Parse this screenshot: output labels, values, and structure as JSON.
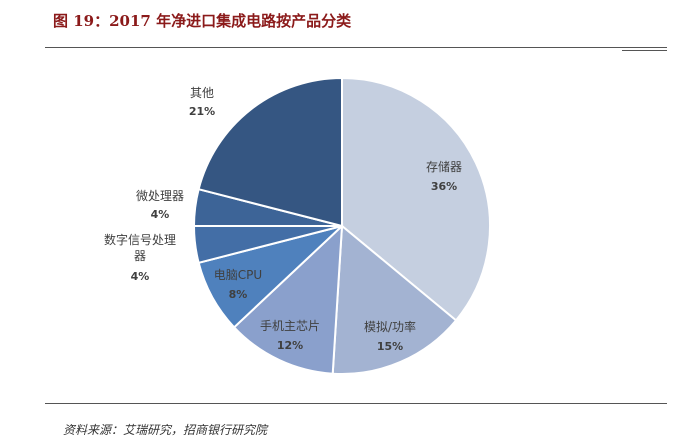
{
  "header": {
    "title": "图 19：2017 年净进口集成电路按产品分类"
  },
  "footer": {
    "source": "资料来源：艾瑞研究，招商银行研究院"
  },
  "chart_data": {
    "type": "pie",
    "title": "图 19：2017 年净进口集成电路按产品分类",
    "slices": [
      {
        "name": "存储器",
        "value": 36,
        "label": "36%",
        "color": "#c5cfe0"
      },
      {
        "name": "模拟/功率",
        "value": 15,
        "label": "15%",
        "color": "#a3b3d2"
      },
      {
        "name": "手机主芯片",
        "value": 12,
        "label": "12%",
        "color": "#8aa0cc"
      },
      {
        "name": "电脑CPU",
        "value": 8,
        "label": "8%",
        "color": "#4f81bd"
      },
      {
        "name": "数字信号处理器",
        "value": 4,
        "label": "4%",
        "color": "#436ea6"
      },
      {
        "name": "微处理器",
        "value": 4,
        "label": "4%",
        "color": "#3d6497"
      },
      {
        "name": "其他",
        "value": 21,
        "label": "21%",
        "color": "#355682"
      }
    ],
    "start": "12 o'clock",
    "direction": "clockwise"
  }
}
